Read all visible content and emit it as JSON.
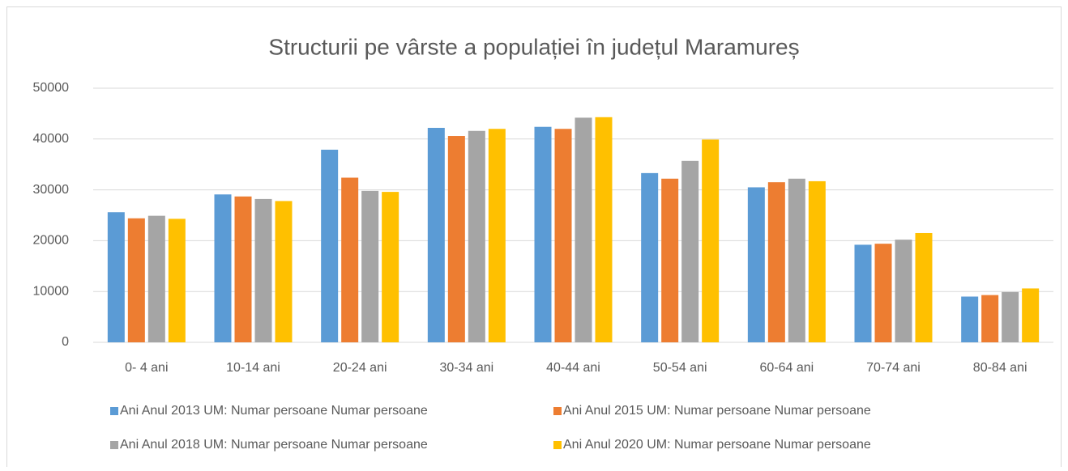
{
  "chart_data": {
    "type": "bar",
    "title": "Structurii pe vârste a populației în județul Maramureș",
    "categories": [
      "0- 4 ani",
      "10-14 ani",
      "20-24 ani",
      "30-34 ani",
      "40-44 ani",
      "50-54 ani",
      "60-64 ani",
      "70-74 ani",
      "80-84 ani"
    ],
    "series": [
      {
        "name": "Ani Anul 2013 UM: Numar persoane Numar persoane",
        "color": "#5b9bd5",
        "values": [
          25600,
          29100,
          37900,
          42200,
          42400,
          33300,
          30500,
          19200,
          9000
        ]
      },
      {
        "name": "Ani Anul 2015 UM: Numar persoane Numar persoane",
        "color": "#ed7d31",
        "values": [
          24400,
          28700,
          32400,
          40600,
          42000,
          32200,
          31500,
          19400,
          9300
        ]
      },
      {
        "name": "Ani Anul 2018 UM: Numar persoane Numar persoane",
        "color": "#a5a5a5",
        "values": [
          24900,
          28200,
          29800,
          41600,
          44200,
          35700,
          32200,
          20200,
          9900
        ]
      },
      {
        "name": "Ani Anul 2020 UM: Numar persoane Numar persoane",
        "color": "#ffc000",
        "values": [
          24300,
          27800,
          29600,
          42000,
          44300,
          39900,
          31700,
          21500,
          10600
        ]
      }
    ],
    "ylim": [
      0,
      50000
    ],
    "yticks": [
      0,
      10000,
      20000,
      30000,
      40000,
      50000
    ],
    "grid": true,
    "legend": "bottom"
  }
}
